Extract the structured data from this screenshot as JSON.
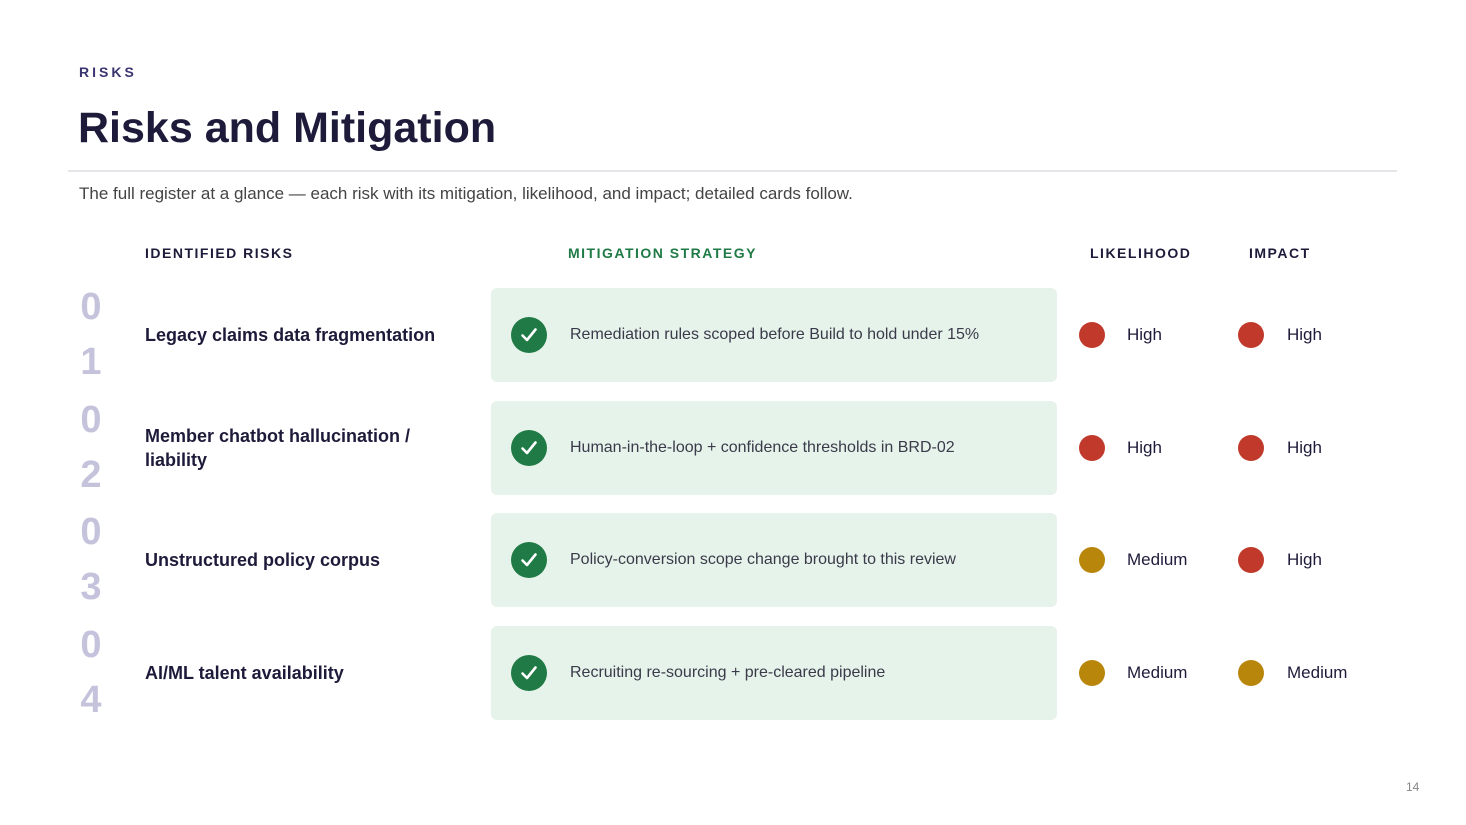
{
  "eyebrow": "RISKS",
  "title": "Risks and Mitigation",
  "subtitle": "The full register at a glance — each risk with its mitigation, likelihood, and impact; detailed cards follow.",
  "columns": {
    "risk": "IDENTIFIED RISKS",
    "mitigation": "MITIGATION STRATEGY",
    "likelihood": "LIKELIHOOD",
    "impact": "IMPACT"
  },
  "rows": [
    {
      "number": "01",
      "risk": "Legacy claims data fragmentation",
      "mitigation": "Remediation rules scoped before Build to hold under 15%",
      "likelihood": {
        "label": "High",
        "color": "#c0392b"
      },
      "impact": {
        "label": "High",
        "color": "#c0392b"
      }
    },
    {
      "number": "02",
      "risk": "Member chatbot hallucination / liability",
      "mitigation": "Human-in-the-loop + confidence thresholds in BRD-02",
      "likelihood": {
        "label": "High",
        "color": "#c0392b"
      },
      "impact": {
        "label": "High",
        "color": "#c0392b"
      }
    },
    {
      "number": "03",
      "risk": "Unstructured policy corpus",
      "mitigation": "Policy-conversion scope change brought to this review",
      "likelihood": {
        "label": "Medium",
        "color": "#b8860b"
      },
      "impact": {
        "label": "High",
        "color": "#c0392b"
      }
    },
    {
      "number": "04",
      "risk": "AI/ML talent availability",
      "mitigation": "Recruiting re-sourcing + pre-cleared pipeline",
      "likelihood": {
        "label": "Medium",
        "color": "#b8860b"
      },
      "impact": {
        "label": "Medium",
        "color": "#b8860b"
      }
    }
  ],
  "page_number": "14"
}
